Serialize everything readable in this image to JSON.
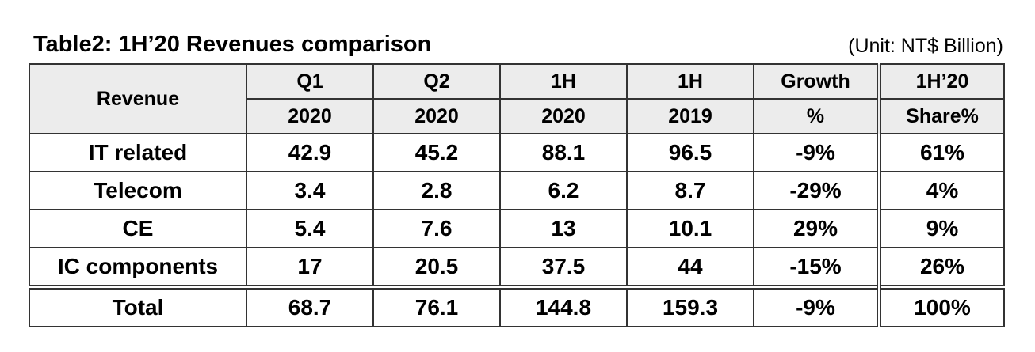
{
  "header": {
    "title": "Table2: 1H’20 Revenues comparison",
    "unit": "(Unit: NT$ Billion)"
  },
  "table": {
    "row_header": "Revenue",
    "columns": [
      {
        "top": "Q1",
        "bottom": "2020"
      },
      {
        "top": "Q2",
        "bottom": "2020"
      },
      {
        "top": "1H",
        "bottom": "2020"
      },
      {
        "top": "1H",
        "bottom": "2019"
      },
      {
        "top": "Growth",
        "bottom": "%"
      },
      {
        "top": "1H’20",
        "bottom": "Share%"
      }
    ],
    "rows": [
      [
        "IT related",
        "42.9",
        "45.2",
        "88.1",
        "96.5",
        "-9%",
        "61%"
      ],
      [
        "Telecom",
        "3.4",
        "2.8",
        "6.2",
        "8.7",
        "-29%",
        "4%"
      ],
      [
        "CE",
        "5.4",
        "7.6",
        "13",
        "10.1",
        "29%",
        "9%"
      ],
      [
        "IC components",
        "17",
        "20.5",
        "37.5",
        "44",
        "-15%",
        "26%"
      ],
      [
        "Total",
        "68.7",
        "76.1",
        "144.8",
        "159.3",
        "-9%",
        "100%"
      ]
    ]
  }
}
